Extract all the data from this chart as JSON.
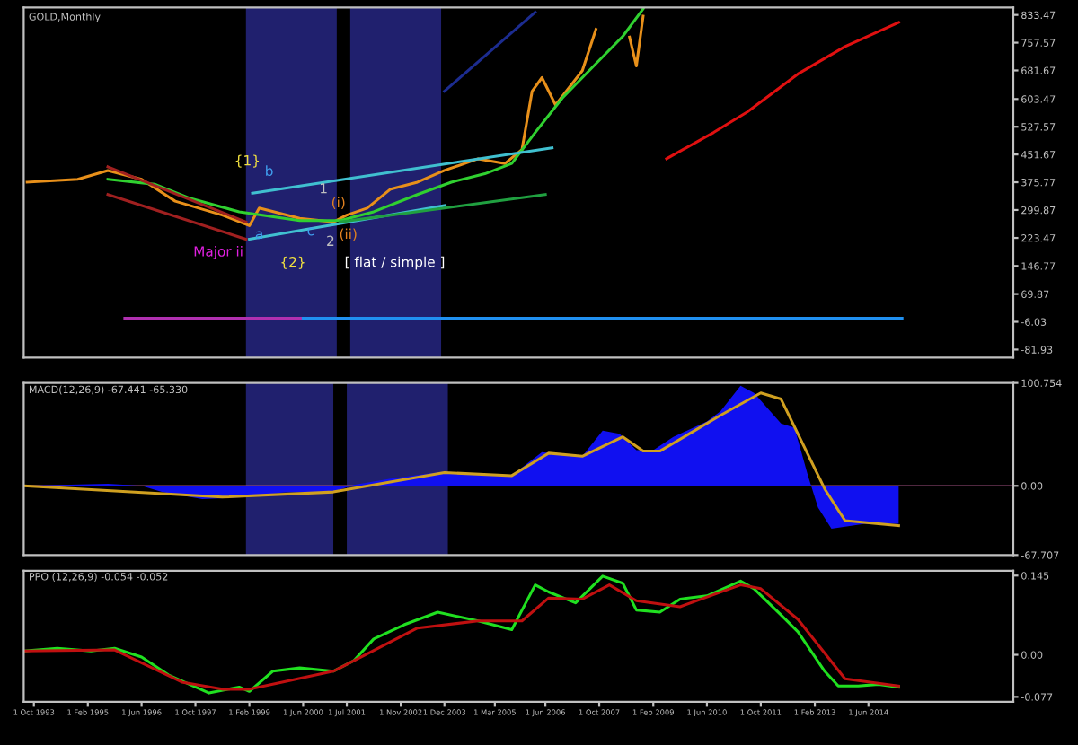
{
  "chart_data": [
    {
      "type": "line",
      "title": "GOLD,Monthly",
      "tick_labels": "y",
      "xlim": [
        "1993-07",
        "2018-01"
      ],
      "ylim": [
        -104,
        854
      ],
      "yticks": [
        833.47,
        757.57,
        681.67,
        603.47,
        527.57,
        451.67,
        375.77,
        299.87,
        223.47,
        146.77,
        69.87,
        -6.03,
        -81.93
      ],
      "bands": [
        {
          "axis": "x",
          "from": "1999-01",
          "to": "2001-04",
          "color": "#20206e"
        },
        {
          "axis": "x",
          "from": "2001-08",
          "to": "2003-11",
          "color": "#20206e"
        }
      ],
      "series": [
        {
          "color": "#e8901a",
          "x": [
            "1993-08",
            "1994-11",
            "1995-08",
            "1996-06",
            "1997-04",
            "1998-06",
            "1999-02",
            "1999-05",
            "2000-05",
            "2001-03",
            "2001-07",
            "2002-01",
            "2002-08",
            "2003-04",
            "2003-12",
            "2004-10",
            "2005-06",
            "2005-11",
            "2006-02",
            "2006-05",
            "2006-09",
            "2007-05",
            "2007-09",
            "2008-03",
            "2008-07",
            "2008-09",
            "2008-11"
          ],
          "values": [
            376,
            384,
            408,
            384,
            324,
            286,
            257,
            305,
            277,
            267,
            286,
            305,
            357,
            376,
            408,
            440,
            427,
            465,
            625,
            662,
            587,
            681,
            794,
            null,
            773,
            694,
            830
          ]
        },
        {
          "color": "#30d030",
          "x": [
            "1995-08",
            "1996-10",
            "1997-08",
            "1998-11",
            "2000-05",
            "2001-05",
            "2002-03",
            "2003-04",
            "2004-02",
            "2004-12",
            "2005-08",
            "2006-03",
            "2006-11",
            "2007-09",
            "2008-05",
            "2008-11"
          ],
          "values": [
            384,
            370,
            333,
            295,
            271,
            271,
            295,
            342,
            376,
            399,
            427,
            512,
            606,
            700,
            775,
            850
          ]
        },
        {
          "color": "#e01010",
          "x": [
            "2009-06",
            "2010-08",
            "2011-06",
            "2012-09",
            "2013-11",
            "2015-03"
          ],
          "values": [
            440,
            512,
            568,
            672,
            747,
            813
          ]
        },
        {
          "color": "#40c0d0",
          "x": [
            "1999-03",
            "2006-08"
          ],
          "values": [
            346,
            470
          ]
        },
        {
          "color": "#40c0d0",
          "x": [
            "1999-02",
            "2003-12"
          ],
          "values": [
            220,
            312
          ]
        },
        {
          "color": "#20a040",
          "x": [
            "2001-05",
            "2006-06"
          ],
          "values": [
            267,
            342
          ]
        },
        {
          "color": "#a02020",
          "x": [
            "1995-08",
            "1999-01"
          ],
          "values": [
            418,
            267
          ]
        },
        {
          "color": "#a02020",
          "x": [
            "1995-08",
            "1999-01"
          ],
          "values": [
            342,
            220
          ]
        },
        {
          "color": "#1c2c90",
          "x": [
            "2003-12",
            "2006-03"
          ],
          "values": [
            625,
            841
          ]
        },
        {
          "color": "#b030b0",
          "x": [
            "1996-01",
            "2000-06"
          ],
          "values": [
            4,
            4
          ]
        },
        {
          "color": "#2090f0",
          "x": [
            "2000-06",
            "2015-04"
          ],
          "values": [
            4,
            4
          ]
        }
      ],
      "annotations": [
        "{1}",
        "b",
        "a",
        "c",
        "1",
        "2",
        "(i)",
        "(ii)",
        "Major ii",
        "{2}",
        "[ flat / simple ]"
      ]
    },
    {
      "type": "area",
      "title": "MACD(12,26,9) -67.441 -65.330",
      "tick_labels": "y",
      "xlim": [
        "1993-07",
        "2018-01"
      ],
      "ylim": [
        -67.707,
        100.754
      ],
      "yticks": [
        100.754,
        {
          "value": 0,
          "label": "0.00"
        },
        -67.707
      ],
      "bands": [
        {
          "axis": "x",
          "from": "1999-01",
          "to": "2001-03",
          "color": "#20206e"
        },
        {
          "axis": "x",
          "from": "2001-07",
          "to": "2004-01",
          "color": "#20206e"
        }
      ],
      "ref_lines": [
        {
          "axis": "y",
          "value": 0,
          "color": "#a05080"
        }
      ],
      "series": [
        {
          "color": "#1010f0",
          "x": [
            "1993-07",
            "1995-08",
            "1996-06",
            "1996-12",
            "1997-12",
            "1999-01",
            "2000-01",
            "2001-03",
            "2001-09",
            "2002-08",
            "2003-12",
            "2004-12",
            "2005-08",
            "2006-01",
            "2006-05",
            "2007-05",
            "2007-11",
            "2008-04",
            "2008-09",
            "2009-02",
            "2009-08",
            "2010-06",
            "2010-10",
            "2011-04",
            "2011-08",
            "2012-04",
            "2012-08",
            "2012-12",
            "2013-03",
            "2013-07",
            "2014-05",
            "2015-03"
          ],
          "values": [
            0,
            2,
            0,
            -6,
            -13,
            -11,
            -6,
            -6,
            1,
            7,
            14,
            11,
            10,
            23,
            33,
            29,
            54,
            51,
            35,
            35,
            48,
            63,
            73,
            98,
            91,
            61,
            57,
            10,
            -21,
            -42,
            -37,
            -37
          ]
        },
        {
          "type": "line",
          "color": "#d0a020",
          "x": [
            "1993-07",
            "1998-06",
            "2001-03",
            "2003-12",
            "2005-08",
            "2006-07",
            "2007-05",
            "2008-05",
            "2008-11",
            "2009-04",
            "2010-10",
            "2011-10",
            "2012-04",
            "2013-05",
            "2013-11",
            "2015-03"
          ],
          "values": [
            0,
            -11,
            -6,
            13,
            10,
            32,
            29,
            48,
            34,
            34,
            69,
            91,
            85,
            -3,
            -34,
            -39
          ]
        }
      ]
    },
    {
      "type": "line",
      "title": "PPO (12,26,9) -0.054 -0.052",
      "xlim": [
        "1993-07",
        "2018-01"
      ],
      "ylim": [
        -0.086,
        0.154
      ],
      "yticks": [
        0.145,
        {
          "value": 0,
          "label": "0.00"
        },
        -0.077
      ],
      "xticks": [
        {
          "value": "1993-10-01",
          "label": "1 Oct 1993"
        },
        {
          "value": "1995-02-01",
          "label": "1 Feb 1995"
        },
        {
          "value": "1996-06-01",
          "label": "1 Jun 1996"
        },
        {
          "value": "1997-10-01",
          "label": "1 Oct 1997"
        },
        {
          "value": "1999-02-01",
          "label": "1 Feb 1999"
        },
        {
          "value": "2000-06-01",
          "label": "1 Jun 2000"
        },
        {
          "value": "2001-07-01",
          "label": "1 Jul 2001"
        },
        {
          "value": "2002-11-01",
          "label": "1 Nov 2002"
        },
        {
          "value": "2003-12-01",
          "label": "1 Dec 2003"
        },
        {
          "value": "2005-03-01",
          "label": "1 Mar 2005"
        },
        {
          "value": "2006-06-01",
          "label": "1 Jun 2006"
        },
        {
          "value": "2007-10-01",
          "label": "1 Oct 2007"
        },
        {
          "value": "2009-02-01",
          "label": "1 Feb 2009"
        },
        {
          "value": "2010-06-01",
          "label": "1 Jun 2010"
        },
        {
          "value": "2011-10-01",
          "label": "1 Oct 2011"
        },
        {
          "value": "2013-02-01",
          "label": "1 Feb 2013"
        },
        {
          "value": "2014-06-01",
          "label": "1 Jun 2014"
        }
      ],
      "series": [
        {
          "color": "#20e020",
          "x": [
            "1993-07",
            "1994-05",
            "1995-03",
            "1995-10",
            "1996-06",
            "1997-02",
            "1998-02",
            "1998-11",
            "1999-02",
            "1999-09",
            "2000-05",
            "2001-03",
            "2001-09",
            "2002-03",
            "2002-12",
            "2003-10",
            "2004-10",
            "2005-08",
            "2006-03",
            "2006-07",
            "2007-03",
            "2007-11",
            "2008-05",
            "2008-09",
            "2009-04",
            "2009-10",
            "2010-06",
            "2011-04",
            "2011-08",
            "2012-04",
            "2012-09",
            "2013-05",
            "2013-09",
            "2014-03",
            "2014-09",
            "2015-03"
          ],
          "values": [
            0.007,
            0.012,
            0.007,
            0.012,
            -0.004,
            -0.037,
            -0.07,
            -0.059,
            -0.067,
            -0.03,
            -0.024,
            -0.03,
            -0.011,
            0.029,
            0.055,
            0.078,
            0.062,
            0.046,
            0.128,
            0.115,
            0.095,
            0.144,
            0.131,
            0.082,
            0.078,
            0.102,
            0.108,
            0.135,
            0.121,
            0.073,
            0.042,
            -0.03,
            -0.057,
            -0.057,
            -0.054,
            -0.059
          ]
        },
        {
          "color": "#c01010",
          "x": [
            "1993-07",
            "1995-10",
            "1997-06",
            "1998-06",
            "1999-02",
            "2001-03",
            "2003-04",
            "2004-10",
            "2005-11",
            "2006-07",
            "2007-05",
            "2008-01",
            "2008-09",
            "2009-10",
            "2011-04",
            "2011-10",
            "2012-09",
            "2013-11",
            "2015-03"
          ],
          "values": [
            0.007,
            0.009,
            -0.05,
            -0.063,
            -0.063,
            -0.03,
            0.049,
            0.062,
            0.062,
            0.104,
            0.102,
            0.128,
            0.099,
            0.088,
            0.128,
            0.121,
            0.065,
            -0.044,
            -0.057
          ]
        }
      ]
    }
  ]
}
